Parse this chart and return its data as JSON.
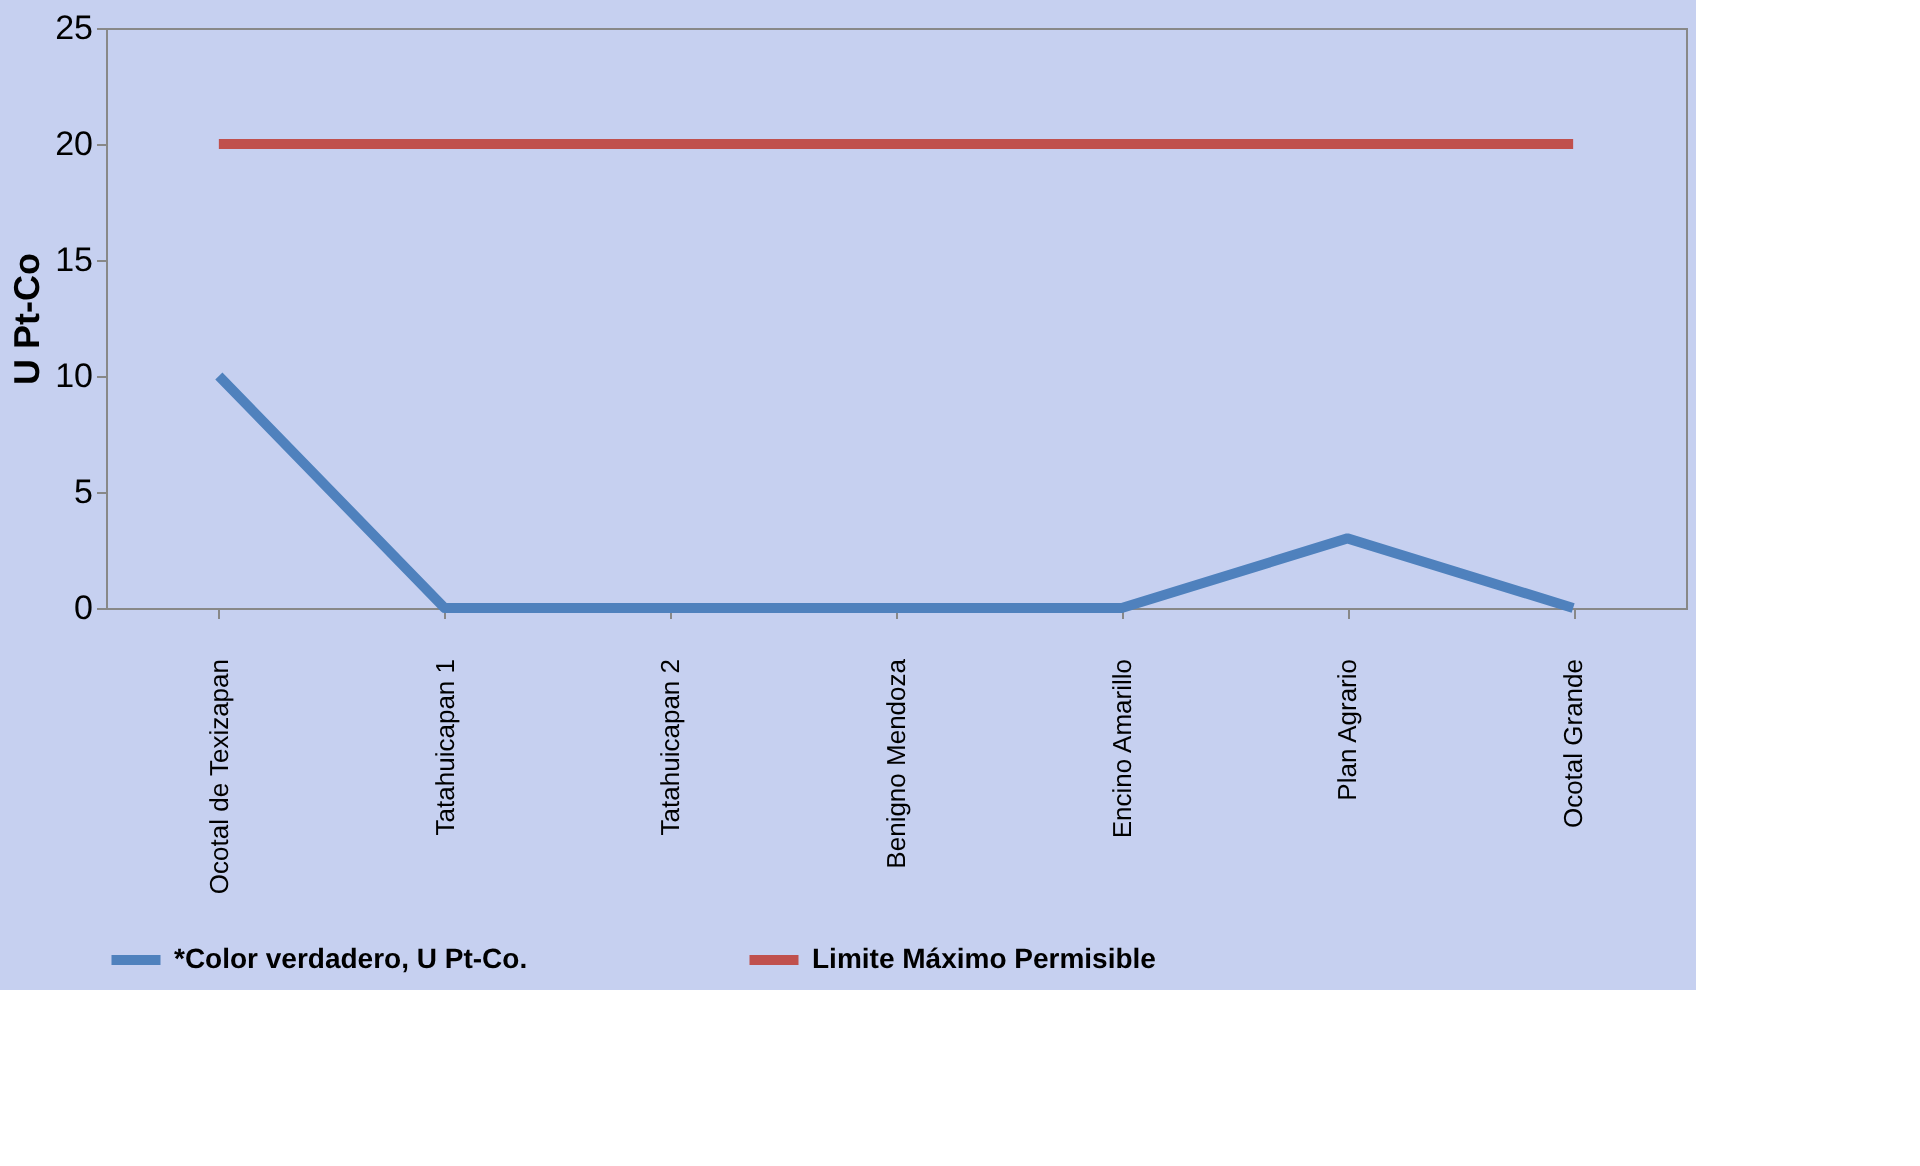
{
  "chart_data": {
    "type": "line",
    "ylabel": "U Pt-Co",
    "categories": [
      "Ocotal de Texizapan",
      "Tatahuicapan 1",
      "Tatahuicapan  2",
      "Benigno Mendoza",
      "Encino Amarillo",
      "Plan Agrario",
      "Ocotal Grande"
    ],
    "series": [
      {
        "name": "*Color verdadero, U Pt-Co.",
        "color": "#4f81bd",
        "values": [
          10,
          0,
          0,
          0,
          0,
          3,
          0
        ]
      },
      {
        "name": "Limite Máximo Permisible",
        "color": "#c0504d",
        "values": [
          20,
          20,
          20,
          20,
          20,
          20,
          20
        ]
      }
    ],
    "ylim": [
      0,
      25
    ],
    "yticks": [
      0,
      5,
      10,
      15,
      20,
      25
    ],
    "grid": false,
    "legend": "bottom",
    "marker": "none",
    "line_style": "solid"
  }
}
